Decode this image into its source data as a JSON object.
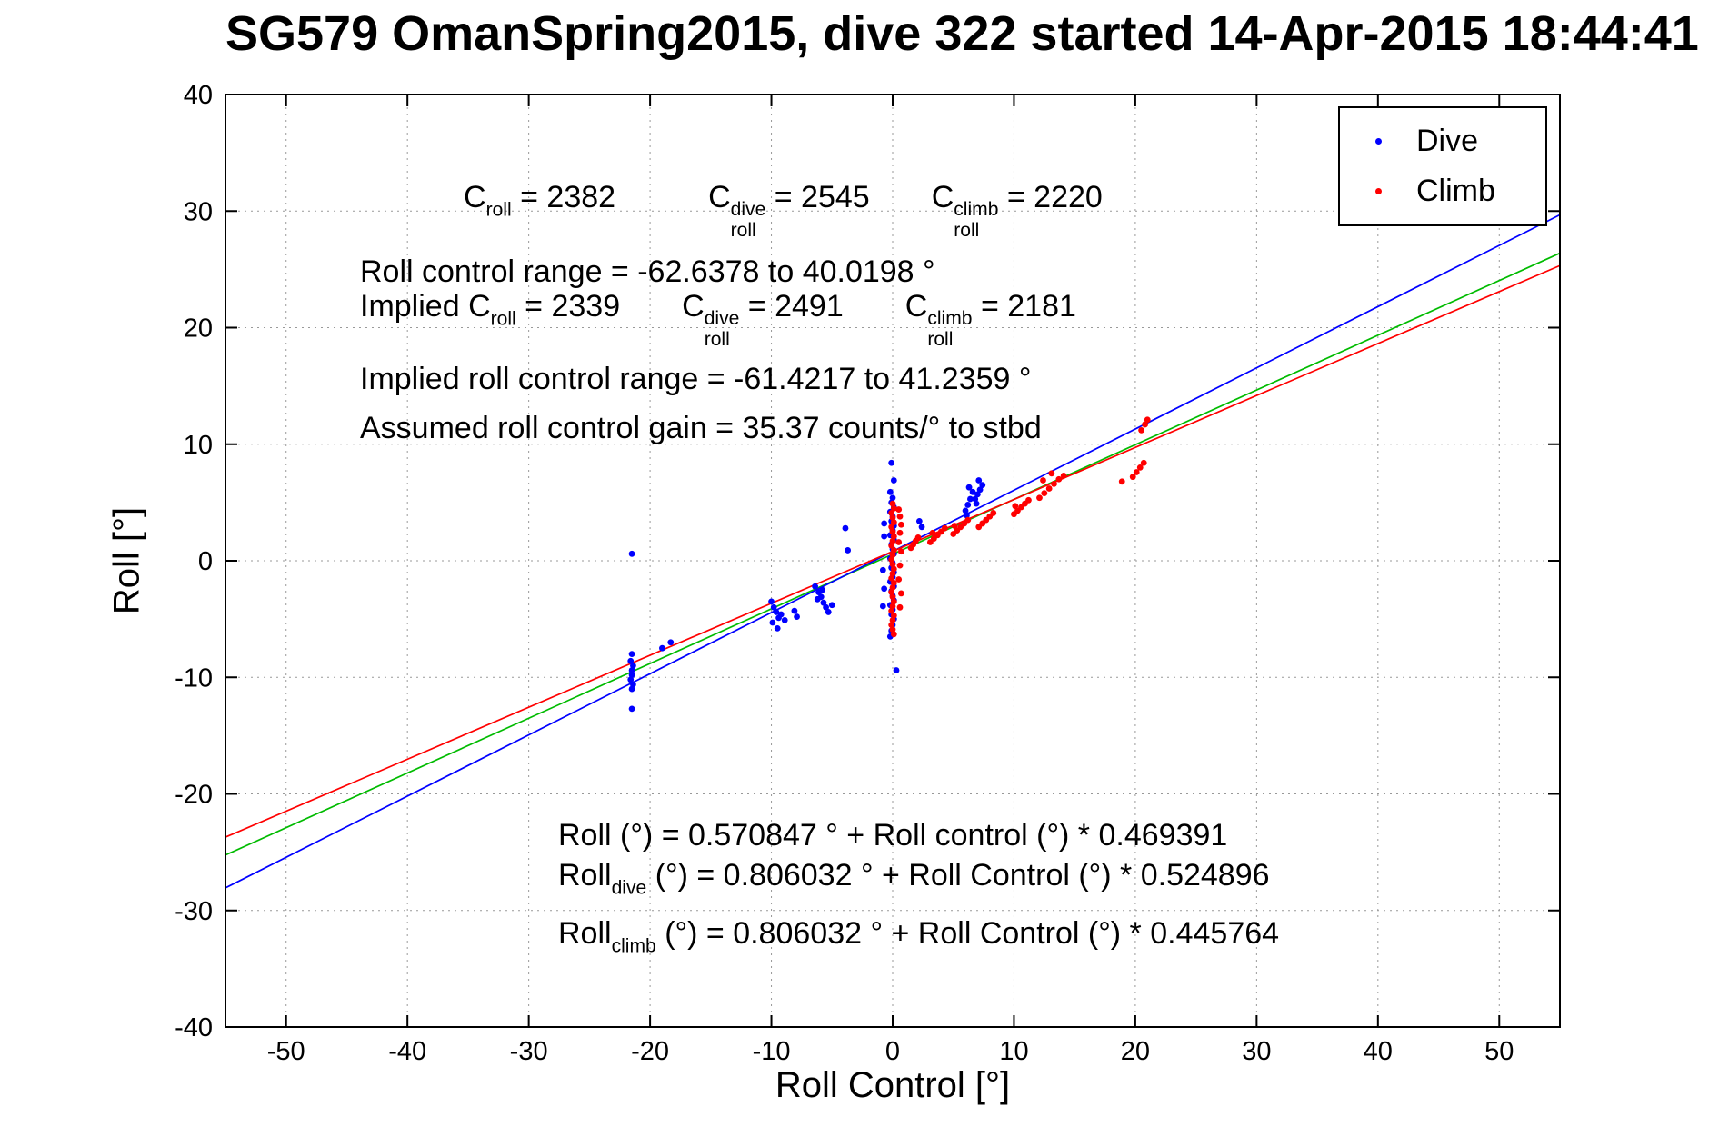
{
  "title": "SG579 OmanSpring2015, dive 322 started 14-Apr-2015 18:44:41",
  "chart_data": {
    "type": "scatter",
    "title": "SG579 OmanSpring2015, dive 322 started 14-Apr-2015 18:44:41",
    "xlabel": "Roll Control [°]",
    "ylabel": "Roll [°]",
    "xlim": [
      -55,
      55
    ],
    "ylim": [
      -40,
      40
    ],
    "xticks": [
      -50,
      -40,
      -30,
      -20,
      -10,
      0,
      10,
      20,
      30,
      40,
      50
    ],
    "yticks": [
      -40,
      -30,
      -20,
      -10,
      0,
      10,
      20,
      30,
      40
    ],
    "grid": true,
    "legend": {
      "position": "top-right",
      "entries": [
        {
          "label": "Dive",
          "color": "#0000ff"
        },
        {
          "label": "Climb",
          "color": "#ff0000"
        }
      ]
    },
    "fit_lines": [
      {
        "name": "all",
        "color": "#00bb00",
        "intercept": 0.570847,
        "slope": 0.469391
      },
      {
        "name": "dive",
        "color": "#0000ff",
        "intercept": 0.806032,
        "slope": 0.524896
      },
      {
        "name": "climb",
        "color": "#ff0000",
        "intercept": 0.806032,
        "slope": 0.445764
      }
    ],
    "series": [
      {
        "name": "Dive",
        "color": "#0000ff",
        "points": [
          [
            -21.5,
            0.6
          ],
          [
            -21.5,
            -8.0
          ],
          [
            -21.6,
            -8.6
          ],
          [
            -21.4,
            -9.0
          ],
          [
            -21.5,
            -9.4
          ],
          [
            -21.5,
            -9.8
          ],
          [
            -21.6,
            -10.2
          ],
          [
            -21.4,
            -10.6
          ],
          [
            -21.5,
            -11.0
          ],
          [
            -21.5,
            -12.7
          ],
          [
            -19.0,
            -7.5
          ],
          [
            -18.3,
            -7.0
          ],
          [
            -10.0,
            -3.5
          ],
          [
            -9.8,
            -4.0
          ],
          [
            -9.6,
            -4.4
          ],
          [
            -9.4,
            -4.9
          ],
          [
            -9.9,
            -5.3
          ],
          [
            -9.5,
            -5.8
          ],
          [
            -9.2,
            -4.6
          ],
          [
            -8.9,
            -5.1
          ],
          [
            -8.1,
            -4.3
          ],
          [
            -7.9,
            -4.8
          ],
          [
            -6.4,
            -2.2
          ],
          [
            -6.1,
            -2.7
          ],
          [
            -5.9,
            -3.1
          ],
          [
            -5.7,
            -3.6
          ],
          [
            -5.5,
            -4.0
          ],
          [
            -5.3,
            -4.4
          ],
          [
            -6.2,
            -3.3
          ],
          [
            -5.8,
            -2.5
          ],
          [
            -5.0,
            -3.8
          ],
          [
            -3.9,
            2.8
          ],
          [
            -3.7,
            0.9
          ],
          [
            -0.1,
            8.4
          ],
          [
            0.1,
            6.9
          ],
          [
            -0.2,
            5.9
          ],
          [
            0.0,
            5.4
          ],
          [
            -0.1,
            5.0
          ],
          [
            0.1,
            4.6
          ],
          [
            -0.2,
            4.2
          ],
          [
            0.0,
            3.8
          ],
          [
            -0.1,
            3.4
          ],
          [
            0.1,
            3.0
          ],
          [
            0.0,
            2.6
          ],
          [
            -0.2,
            2.2
          ],
          [
            0.1,
            1.8
          ],
          [
            -0.1,
            1.4
          ],
          [
            0.0,
            1.0
          ],
          [
            0.1,
            0.6
          ],
          [
            -0.2,
            0.2
          ],
          [
            0.0,
            -0.2
          ],
          [
            -0.1,
            -0.6
          ],
          [
            0.1,
            -1.0
          ],
          [
            0.0,
            -1.4
          ],
          [
            -0.2,
            -1.8
          ],
          [
            0.1,
            -2.2
          ],
          [
            -0.1,
            -2.6
          ],
          [
            0.0,
            -3.0
          ],
          [
            0.1,
            -3.4
          ],
          [
            -0.2,
            -3.8
          ],
          [
            0.0,
            -4.2
          ],
          [
            -0.1,
            -4.6
          ],
          [
            0.1,
            -5.0
          ],
          [
            0.0,
            -5.5
          ],
          [
            -0.1,
            -6.0
          ],
          [
            -0.2,
            -6.5
          ],
          [
            0.3,
            -9.4
          ],
          [
            -0.7,
            3.2
          ],
          [
            -0.7,
            2.1
          ],
          [
            -0.8,
            -0.8
          ],
          [
            -0.7,
            -2.4
          ],
          [
            -0.8,
            -3.9
          ],
          [
            2.2,
            3.4
          ],
          [
            2.4,
            2.9
          ],
          [
            6.0,
            4.3
          ],
          [
            6.2,
            4.8
          ],
          [
            6.4,
            5.3
          ],
          [
            6.6,
            5.9
          ],
          [
            6.3,
            6.3
          ],
          [
            6.1,
            3.9
          ],
          [
            6.8,
            5.3
          ],
          [
            7.0,
            5.7
          ],
          [
            7.2,
            6.1
          ],
          [
            7.4,
            6.5
          ],
          [
            7.1,
            6.9
          ],
          [
            6.9,
            4.9
          ]
        ]
      },
      {
        "name": "Climb",
        "color": "#ff0000",
        "points": [
          [
            0.0,
            4.9
          ],
          [
            0.1,
            4.5
          ],
          [
            -0.1,
            4.1
          ],
          [
            0.0,
            3.7
          ],
          [
            0.1,
            3.3
          ],
          [
            -0.1,
            2.9
          ],
          [
            0.0,
            2.5
          ],
          [
            0.1,
            2.1
          ],
          [
            0.0,
            1.7
          ],
          [
            -0.1,
            1.3
          ],
          [
            0.1,
            0.9
          ],
          [
            0.0,
            0.5
          ],
          [
            -0.1,
            0.1
          ],
          [
            0.0,
            -0.3
          ],
          [
            0.1,
            -0.7
          ],
          [
            0.0,
            -1.1
          ],
          [
            -0.1,
            -1.5
          ],
          [
            0.1,
            -1.9
          ],
          [
            0.0,
            -2.3
          ],
          [
            -0.1,
            -2.7
          ],
          [
            0.0,
            -3.1
          ],
          [
            0.1,
            -3.5
          ],
          [
            0.0,
            -3.9
          ],
          [
            -0.1,
            -4.3
          ],
          [
            0.1,
            -4.7
          ],
          [
            0.0,
            -5.1
          ],
          [
            -0.1,
            -5.5
          ],
          [
            0.0,
            -5.9
          ],
          [
            0.1,
            -6.3
          ],
          [
            0.5,
            4.4
          ],
          [
            0.6,
            3.8
          ],
          [
            0.7,
            3.1
          ],
          [
            0.6,
            2.4
          ],
          [
            0.5,
            1.6
          ],
          [
            0.7,
            0.8
          ],
          [
            0.6,
            -0.4
          ],
          [
            0.5,
            -1.6
          ],
          [
            0.7,
            -2.8
          ],
          [
            0.6,
            -4.0
          ],
          [
            1.5,
            1.1
          ],
          [
            1.7,
            1.4
          ],
          [
            1.9,
            1.7
          ],
          [
            2.1,
            2.0
          ],
          [
            3.1,
            1.6
          ],
          [
            3.4,
            1.9
          ],
          [
            3.7,
            2.2
          ],
          [
            4.0,
            2.5
          ],
          [
            4.3,
            2.8
          ],
          [
            3.3,
            2.4
          ],
          [
            5.0,
            2.3
          ],
          [
            5.3,
            2.6
          ],
          [
            5.6,
            2.9
          ],
          [
            5.9,
            3.2
          ],
          [
            6.2,
            3.5
          ],
          [
            5.1,
            3.0
          ],
          [
            7.1,
            2.9
          ],
          [
            7.4,
            3.2
          ],
          [
            7.7,
            3.5
          ],
          [
            8.0,
            3.8
          ],
          [
            8.3,
            4.1
          ],
          [
            10.0,
            4.0
          ],
          [
            10.3,
            4.3
          ],
          [
            10.6,
            4.6
          ],
          [
            10.9,
            4.9
          ],
          [
            11.2,
            5.2
          ],
          [
            10.1,
            4.7
          ],
          [
            12.1,
            5.4
          ],
          [
            12.5,
            5.8
          ],
          [
            12.9,
            6.2
          ],
          [
            13.3,
            6.6
          ],
          [
            13.7,
            7.0
          ],
          [
            14.1,
            7.3
          ],
          [
            12.4,
            6.9
          ],
          [
            13.1,
            7.5
          ],
          [
            18.9,
            6.8
          ],
          [
            19.8,
            7.2
          ],
          [
            20.1,
            7.6
          ],
          [
            20.4,
            8.0
          ],
          [
            20.7,
            8.4
          ],
          [
            20.5,
            11.2
          ],
          [
            20.8,
            11.7
          ],
          [
            21.0,
            12.1
          ]
        ]
      }
    ]
  },
  "annotations": {
    "c_roll_line": [
      {
        "base": "C",
        "sub": "roll"
      },
      {
        "text": " = 2382   "
      },
      {
        "base": "C",
        "sub": "roll",
        "sup": "dive"
      },
      {
        "text": " = 2545  "
      },
      {
        "base": "C",
        "sub": "roll",
        "sup": "climb"
      },
      {
        "text": " = 2220"
      }
    ],
    "roll_control_range": [
      {
        "text": "Roll control range = -62.6378 to 40.0198 °"
      }
    ],
    "implied_c_roll_line": [
      {
        "text": "Implied "
      },
      {
        "base": "C",
        "sub": "roll"
      },
      {
        "text": " = 2339  "
      },
      {
        "base": "C",
        "sub": "roll",
        "sup": "dive"
      },
      {
        "text": " = 2491  "
      },
      {
        "base": "C",
        "sub": "roll",
        "sup": "climb"
      },
      {
        "text": " = 2181"
      }
    ],
    "implied_range": [
      {
        "text": "Implied roll control range = -61.4217 to 41.2359 °"
      }
    ],
    "assumed_gain": [
      {
        "text": "Assumed roll control gain = 35.37 counts/° to stbd"
      }
    ],
    "fit_all": [
      {
        "text": "Roll (°) = 0.570847 ° + Roll control (°) * 0.469391"
      }
    ],
    "fit_dive": [
      {
        "base": "Roll",
        "sub": "dive"
      },
      {
        "text": " (°) = 0.806032 ° + Roll Control (°) * 0.524896"
      }
    ],
    "fit_climb": [
      {
        "base": "Roll",
        "sub": "climb"
      },
      {
        "text": " (°) = 0.806032 ° + Roll Control (°) * 0.445764"
      }
    ]
  }
}
